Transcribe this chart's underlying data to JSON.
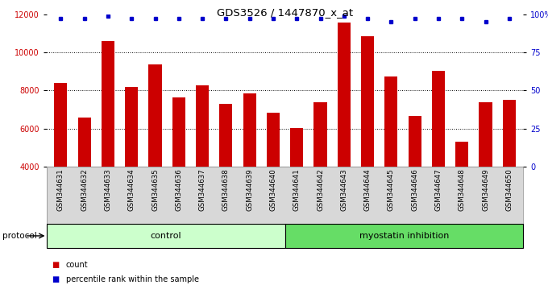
{
  "title": "GDS3526 / 1447870_x_at",
  "categories": [
    "GSM344631",
    "GSM344632",
    "GSM344633",
    "GSM344634",
    "GSM344635",
    "GSM344636",
    "GSM344637",
    "GSM344638",
    "GSM344639",
    "GSM344640",
    "GSM344641",
    "GSM344642",
    "GSM344643",
    "GSM344644",
    "GSM344645",
    "GSM344646",
    "GSM344647",
    "GSM344648",
    "GSM344649",
    "GSM344650"
  ],
  "bar_values": [
    8400,
    6600,
    10600,
    8200,
    9350,
    7650,
    8250,
    7300,
    7850,
    6850,
    6050,
    7400,
    11550,
    10850,
    8750,
    6650,
    9050,
    5300,
    7400,
    7500
  ],
  "percentile_values": [
    97,
    97,
    99,
    97,
    97,
    97,
    97,
    97,
    97,
    97,
    97,
    97,
    99,
    97,
    95,
    97,
    97,
    97,
    95,
    97
  ],
  "bar_color": "#cc0000",
  "percentile_color": "#0000cc",
  "ylim_left": [
    4000,
    12000
  ],
  "ylim_right": [
    0,
    100
  ],
  "yticks_left": [
    4000,
    6000,
    8000,
    10000,
    12000
  ],
  "yticks_right": [
    0,
    25,
    50,
    75,
    100
  ],
  "ytick_labels_right": [
    "0",
    "25",
    "50",
    "75",
    "100%"
  ],
  "grid_values": [
    6000,
    8000,
    10000
  ],
  "control_count": 10,
  "group_labels": [
    "control",
    "myostatin inhibition"
  ],
  "group_colors": [
    "#ccffcc",
    "#66dd66"
  ],
  "protocol_label": "protocol",
  "legend_count_label": "count",
  "legend_percentile_label": "percentile rank within the sample",
  "xlabel_bg_color": "#d8d8d8",
  "fig_bg_color": "#ffffff"
}
